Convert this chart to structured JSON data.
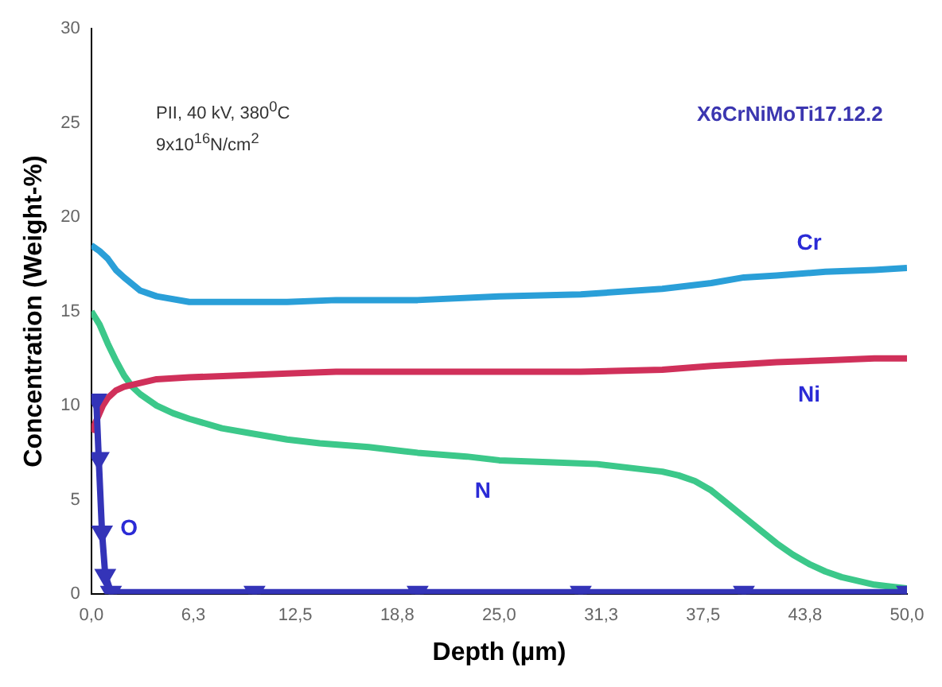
{
  "chart_data": {
    "type": "line",
    "xlabel": "Depth (µm)",
    "ylabel": "Concentration (Weight-%)",
    "annotations": [
      "PII, 40 kV, 380$^{0}$C",
      "9x10$^{16}$N/cm$^{2}$",
      "X6CrNiMoTi17.12.2"
    ],
    "xlim": [
      0,
      50
    ],
    "xticks": [
      {
        "value": 0,
        "label": "0,0"
      },
      {
        "value": 6.25,
        "label": "6,3"
      },
      {
        "value": 12.5,
        "label": "12,5"
      },
      {
        "value": 18.75,
        "label": "18,8"
      },
      {
        "value": 25,
        "label": "25,0"
      },
      {
        "value": 31.25,
        "label": "31,3"
      },
      {
        "value": 37.5,
        "label": "37,5"
      },
      {
        "value": 43.75,
        "label": "43,8"
      },
      {
        "value": 50,
        "label": "50,0"
      }
    ],
    "ylim": [
      0,
      30
    ],
    "yticks": [
      0,
      5,
      10,
      15,
      20,
      25,
      30
    ],
    "grid": false,
    "legend": false,
    "line_style": "solid",
    "series": [
      {
        "name": "Cr",
        "color": "#2a9fd8",
        "marker": "none",
        "x": [
          0,
          0.5,
          1,
          1.5,
          2,
          3,
          4,
          6,
          9,
          12,
          15,
          20,
          25,
          30,
          35,
          38,
          40,
          42,
          45,
          48,
          50
        ],
        "values": [
          18.5,
          18.2,
          17.8,
          17.2,
          16.8,
          16.1,
          15.8,
          15.5,
          15.5,
          15.5,
          15.6,
          15.6,
          15.8,
          15.9,
          16.2,
          16.5,
          16.8,
          16.9,
          17.1,
          17.2,
          17.3
        ]
      },
      {
        "name": "Ni",
        "color": "#d0305a",
        "marker": "none",
        "x": [
          0,
          0.3,
          0.7,
          1,
          1.5,
          2,
          3,
          4,
          6,
          9,
          12,
          15,
          20,
          25,
          30,
          35,
          38,
          40,
          42,
          45,
          48,
          50
        ],
        "values": [
          8.6,
          9.2,
          10,
          10.4,
          10.8,
          11,
          11.2,
          11.4,
          11.5,
          11.6,
          11.7,
          11.8,
          11.8,
          11.8,
          11.8,
          11.9,
          12.1,
          12.2,
          12.3,
          12.4,
          12.5,
          12.5
        ]
      },
      {
        "name": "N",
        "color": "#3cc88a",
        "marker": "none",
        "x": [
          0,
          0.5,
          1,
          1.5,
          2,
          2.5,
          3,
          4,
          5,
          6,
          8,
          10,
          12,
          14,
          17,
          20,
          23,
          25,
          28,
          31,
          33,
          35,
          36,
          37,
          38,
          39,
          40,
          41,
          42,
          43,
          44,
          45,
          46,
          47,
          48,
          49,
          50
        ],
        "values": [
          15,
          14.3,
          13.3,
          12.4,
          11.6,
          11,
          10.6,
          10,
          9.6,
          9.3,
          8.8,
          8.5,
          8.2,
          8,
          7.8,
          7.5,
          7.3,
          7.1,
          7,
          6.9,
          6.7,
          6.5,
          6.3,
          6,
          5.5,
          4.8,
          4.1,
          3.4,
          2.7,
          2.1,
          1.6,
          1.2,
          0.9,
          0.7,
          0.5,
          0.4,
          0.3
        ]
      },
      {
        "name": "O",
        "color": "#3434b8",
        "marker": "triangle",
        "x": [
          0.3,
          0.45,
          0.65,
          0.85,
          1.2,
          10,
          20,
          30,
          40,
          50
        ],
        "values": [
          10.3,
          7.2,
          3.3,
          1,
          0.1,
          0.1,
          0.1,
          0.1,
          0.1,
          0.1
        ]
      }
    ]
  }
}
